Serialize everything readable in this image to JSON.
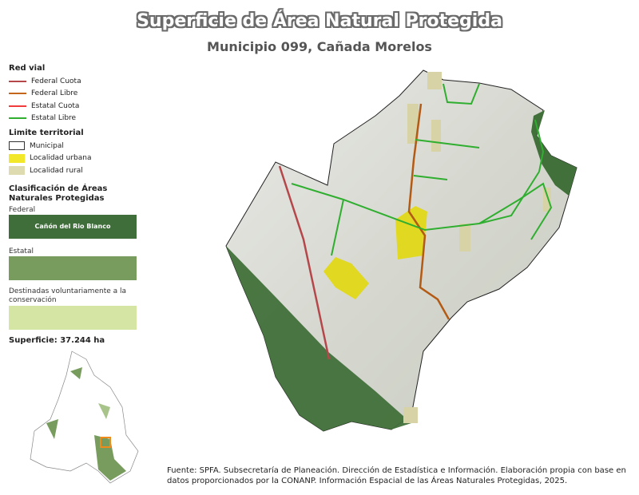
{
  "title": "Superficie de Área Natural Protegida",
  "subtitle": "Municipio 099, Cañada Morelos",
  "legend": {
    "road_heading": "Red vial",
    "roads": [
      {
        "label": "Federal Cuota",
        "color": "#b5474b"
      },
      {
        "label": "Federal Libre",
        "color": "#c4661b"
      },
      {
        "label": "Estatal Cuota",
        "color": "#f03c3c"
      },
      {
        "label": "Estatal Libre",
        "color": "#2fae2f"
      }
    ],
    "limit_heading": "Limite territorial",
    "limits": [
      {
        "label": "Municipal",
        "color": "#ffffff"
      },
      {
        "label": "Localidad urbana",
        "color": "#f2e829"
      },
      {
        "label": "Localidad rural",
        "color": "#dedbb0"
      }
    ],
    "anp_heading": "Clasificación de Áreas Naturales Protegidas",
    "anp_categories": [
      {
        "label": "Federal",
        "color": "#3f6e3a",
        "area_name": "Cañón del Rio Blanco"
      },
      {
        "label": "Estatal",
        "color": "#789b5e",
        "area_name": ""
      },
      {
        "label": "Destinadas voluntariamente a la conservación",
        "color": "#d5e5a3",
        "area_name": ""
      }
    ],
    "surface": "Superficie: 37.244 ha"
  },
  "source": "Fuente: SPFA. Subsecretaría de Planeación. Dirección de Estadística e Información. Elaboración propia con base en datos proporcionados por la CONANP. Información Espacial de las Áreas Naturales Protegidas, 2025."
}
